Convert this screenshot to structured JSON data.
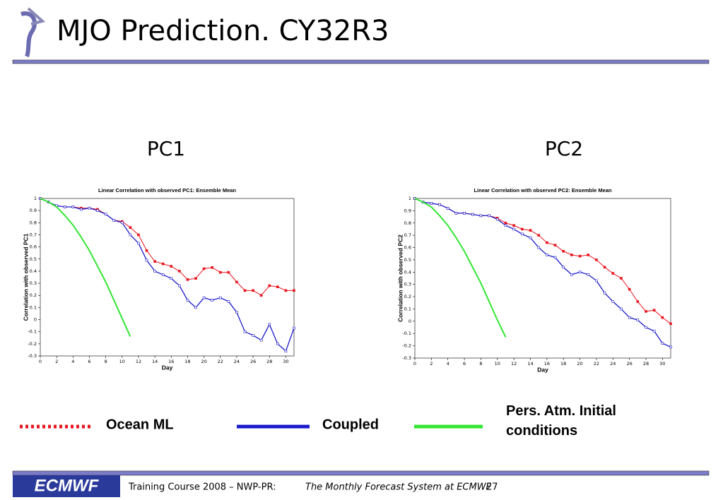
{
  "header": {
    "title": "MJO Prediction. CY32R3"
  },
  "panel_labels": [
    "PC1",
    "PC2"
  ],
  "chart_data": [
    {
      "type": "line",
      "title": "Linear Correlation with observed PC1: Ensemble Mean",
      "x_label": "Day",
      "y_label": "Correlation with observed PC1",
      "x": [
        0,
        1,
        2,
        3,
        4,
        5,
        6,
        7,
        8,
        9,
        10,
        11,
        12,
        13,
        14,
        15,
        16,
        17,
        18,
        19,
        20,
        21,
        22,
        23,
        24,
        25,
        26,
        27,
        28,
        29,
        30,
        31
      ],
      "xlim": [
        0,
        31
      ],
      "xticks": [
        0,
        2,
        4,
        6,
        8,
        10,
        12,
        14,
        16,
        18,
        20,
        22,
        24,
        26,
        28,
        30
      ],
      "ylim": [
        -0.3,
        1
      ],
      "yticks": [
        -0.3,
        -0.2,
        -0.1,
        0,
        0.1,
        0.2,
        0.3,
        0.4,
        0.5,
        0.6,
        0.7,
        0.8,
        0.9,
        1
      ],
      "series": [
        {
          "name": "Ocean ML",
          "color": "#e8141e",
          "values": [
            1,
            0.97,
            0.94,
            0.93,
            0.93,
            0.92,
            0.92,
            0.91,
            0.87,
            0.82,
            0.81,
            0.76,
            0.7,
            0.57,
            0.48,
            0.46,
            0.44,
            0.4,
            0.33,
            0.34,
            0.42,
            0.43,
            0.39,
            0.39,
            0.31,
            0.24,
            0.24,
            0.2,
            0.28,
            0.27,
            0.24,
            0.24
          ]
        },
        {
          "name": "Coupled",
          "color": "#1a1acc",
          "values": [
            1,
            0.97,
            0.94,
            0.93,
            0.93,
            0.91,
            0.92,
            0.9,
            0.87,
            0.82,
            0.8,
            0.7,
            0.63,
            0.49,
            0.4,
            0.37,
            0.34,
            0.28,
            0.16,
            0.1,
            0.18,
            0.16,
            0.18,
            0.15,
            0.06,
            -0.1,
            -0.13,
            -0.17,
            -0.04,
            -0.2,
            -0.26,
            -0.07
          ]
        },
        {
          "name": "Pers. Atm. Initial conditions",
          "color": "#33e633",
          "values": [
            1,
            0.97,
            0.93,
            0.86,
            0.78,
            0.68,
            0.57,
            0.44,
            0.31,
            0.16,
            0.01,
            -0.14,
            null,
            null,
            null,
            null,
            null,
            null,
            null,
            null,
            null,
            null,
            null,
            null,
            null,
            null,
            null,
            null,
            null,
            null,
            null,
            null
          ]
        }
      ]
    },
    {
      "type": "line",
      "title": "Linear Correlation with observed PC2: Ensemble Mean",
      "x_label": "Day",
      "y_label": "Correlation with observed PC2",
      "x": [
        0,
        1,
        2,
        3,
        4,
        5,
        6,
        7,
        8,
        9,
        10,
        11,
        12,
        13,
        14,
        15,
        16,
        17,
        18,
        19,
        20,
        21,
        22,
        23,
        24,
        25,
        26,
        27,
        28,
        29,
        30,
        31
      ],
      "xlim": [
        0,
        31
      ],
      "xticks": [
        0,
        2,
        4,
        6,
        8,
        10,
        12,
        14,
        16,
        18,
        20,
        22,
        24,
        26,
        28,
        30
      ],
      "ylim": [
        -0.3,
        1
      ],
      "yticks": [
        -0.3,
        -0.2,
        -0.1,
        0,
        0.1,
        0.2,
        0.3,
        0.4,
        0.5,
        0.6,
        0.7,
        0.8,
        0.9,
        1
      ],
      "series": [
        {
          "color": "#e8141e",
          "values": [
            1,
            0.97,
            0.96,
            0.95,
            0.92,
            0.88,
            0.88,
            0.87,
            0.86,
            0.86,
            0.84,
            0.8,
            0.78,
            0.75,
            0.74,
            0.7,
            0.64,
            0.62,
            0.57,
            0.54,
            0.53,
            0.54,
            0.5,
            0.44,
            0.39,
            0.35,
            0.26,
            0.16,
            0.08,
            0.09,
            0.03,
            -0.02
          ]
        },
        {
          "color": "#1a1acc",
          "values": [
            1,
            0.97,
            0.96,
            0.95,
            0.92,
            0.88,
            0.88,
            0.87,
            0.86,
            0.86,
            0.83,
            0.78,
            0.75,
            0.71,
            0.68,
            0.6,
            0.54,
            0.52,
            0.44,
            0.38,
            0.4,
            0.38,
            0.33,
            0.23,
            0.16,
            0.1,
            0.03,
            0.01,
            -0.05,
            -0.08,
            -0.18,
            -0.21
          ]
        },
        {
          "color": "#33e633",
          "values": [
            1,
            0.97,
            0.93,
            0.86,
            0.78,
            0.68,
            0.57,
            0.44,
            0.31,
            0.16,
            0.01,
            -0.13,
            null,
            null,
            null,
            null,
            null,
            null,
            null,
            null,
            null,
            null,
            null,
            null,
            null,
            null,
            null,
            null,
            null,
            null,
            null,
            null
          ]
        }
      ]
    }
  ],
  "footer": {
    "course": "Training Course 2008 – NWP-PR:",
    "subject": "The Monthly Forecast System at ECMWF",
    "page": "27",
    "logo": "ECMWF"
  }
}
